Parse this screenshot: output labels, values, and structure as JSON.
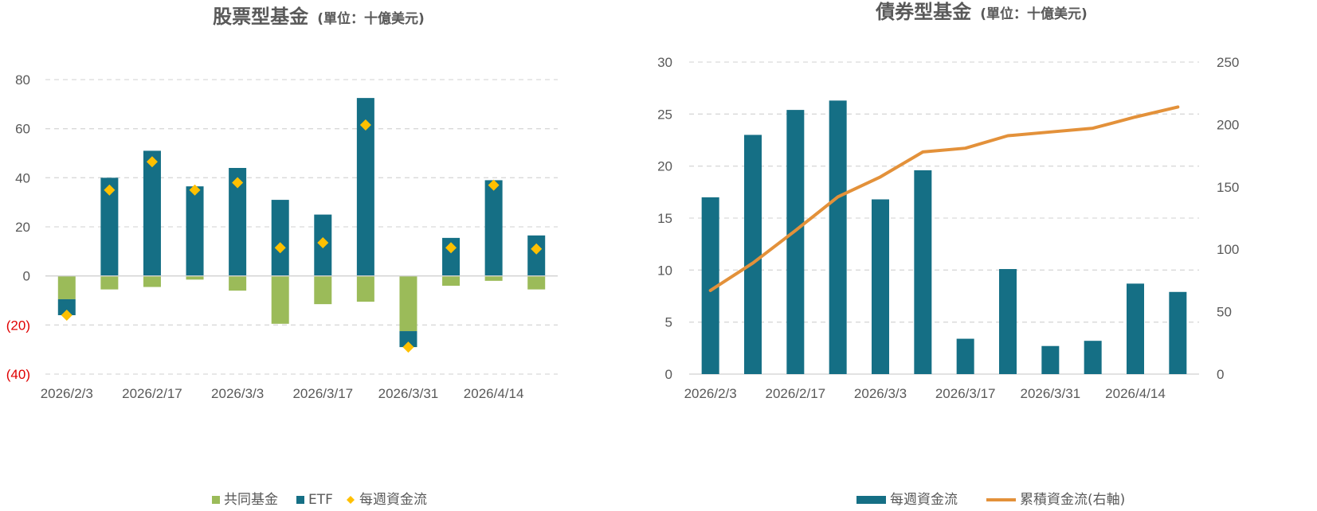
{
  "chart_data": [
    {
      "type": "bar",
      "stacked": true,
      "title": "股票型基金",
      "subtitle": "(單位：十億美元)",
      "ylim": [
        -40,
        80
      ],
      "yticks": [
        80,
        60,
        40,
        20,
        0,
        -20,
        -40
      ],
      "ytick_labels": [
        "80",
        "60",
        "40",
        "20",
        "0",
        "(20)",
        "(40)"
      ],
      "x": [
        "2026/2/3",
        "2026/2/10",
        "2026/2/17",
        "2026/2/24",
        "2026/3/3",
        "2026/3/10",
        "2026/3/17",
        "2026/3/24",
        "2026/3/31",
        "2026/4/7",
        "2026/4/14",
        "2026/4/21"
      ],
      "xtick_labels": [
        "2026/2/3",
        "2026/2/17",
        "2026/3/3",
        "2026/3/17",
        "2026/3/31",
        "2026/4/14"
      ],
      "grid": true,
      "legend_position": "bottom",
      "colors": {
        "mutual": "#9bbb59",
        "etf": "#156f85",
        "weekly": "#ffc000",
        "negative_tick": "#e00000"
      },
      "series": [
        {
          "name": "共同基金",
          "kind": "bar",
          "values": [
            -9.5,
            -5.5,
            -4.5,
            -1.5,
            -6,
            -19.5,
            -11.5,
            -10.5,
            -22.5,
            -4,
            -2,
            -5.5
          ]
        },
        {
          "name": "ETF",
          "kind": "bar",
          "values": [
            -6.5,
            40,
            51,
            36.5,
            44,
            31,
            25,
            72.5,
            -6.5,
            15.5,
            39,
            16.5
          ]
        },
        {
          "name": "每週資金流",
          "kind": "diamond",
          "values": [
            -16,
            35,
            46.5,
            35,
            38,
            11.5,
            13.5,
            61.5,
            -29,
            11.5,
            37,
            11
          ]
        }
      ]
    },
    {
      "type": "bar",
      "title": "債券型基金",
      "subtitle": "(單位：十億美元)",
      "ylim": [
        0,
        30
      ],
      "yticks": [
        0,
        5,
        10,
        15,
        20,
        25,
        30
      ],
      "y2lim": [
        0,
        250
      ],
      "y2ticks": [
        0,
        50,
        100,
        150,
        200,
        250
      ],
      "x": [
        "2026/2/3",
        "2026/2/10",
        "2026/2/17",
        "2026/2/24",
        "2026/3/3",
        "2026/3/10",
        "2026/3/17",
        "2026/3/24",
        "2026/3/31",
        "2026/4/7",
        "2026/4/14",
        "2026/4/21"
      ],
      "xtick_labels": [
        "2026/2/3",
        "2026/2/17",
        "2026/3/3",
        "2026/3/17",
        "2026/3/31",
        "2026/4/14"
      ],
      "grid": true,
      "legend_position": "bottom",
      "colors": {
        "weekly": "#156f85",
        "cumulative": "#e3913a"
      },
      "series": [
        {
          "name": "每週資金流",
          "kind": "bar",
          "axis": "left",
          "values": [
            17,
            23,
            25.4,
            26.3,
            16.8,
            19.6,
            3.4,
            10.1,
            2.7,
            3.2,
            8.7,
            7.9
          ]
        },
        {
          "name": "累積資金流(右軸)",
          "kind": "line",
          "axis": "right",
          "values": [
            67,
            89,
            115,
            142,
            158,
            178,
            181,
            191,
            194,
            197,
            206,
            214
          ]
        }
      ]
    }
  ]
}
